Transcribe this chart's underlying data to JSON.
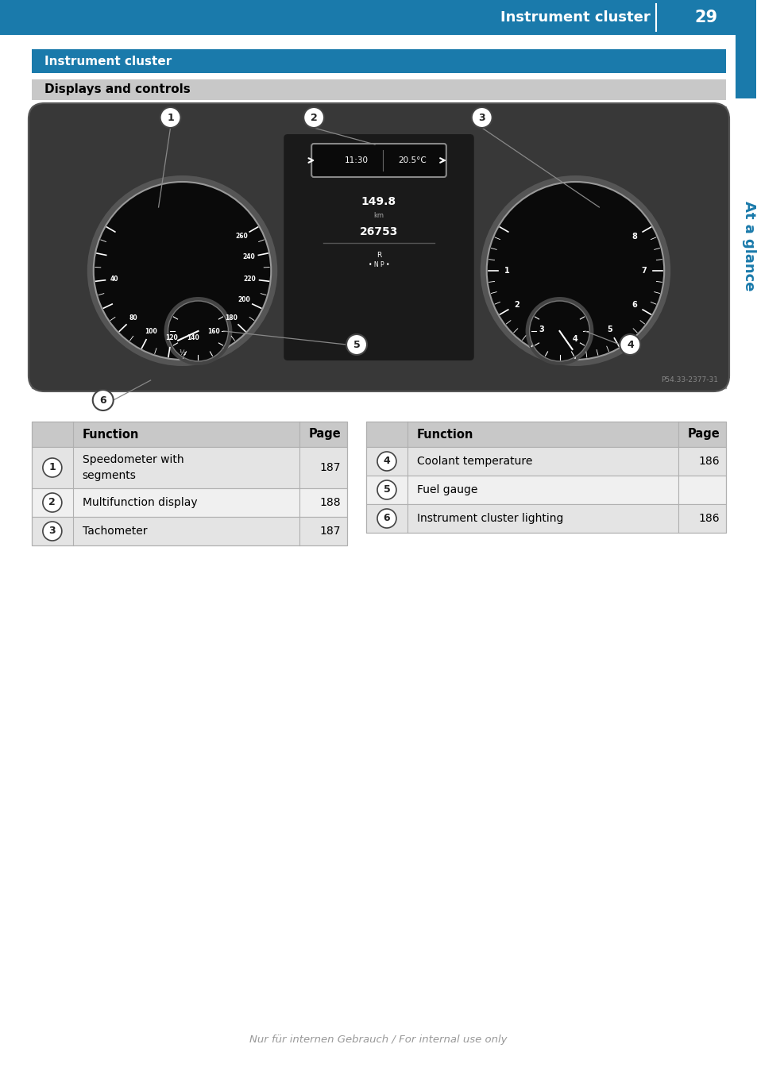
{
  "page_title": "Instrument cluster",
  "page_number": "29",
  "header_bg": "#1a7aab",
  "header_text_color": "#ffffff",
  "section1_title": "Instrument cluster",
  "section2_title": "Displays and controls",
  "section1_bg": "#1a7aab",
  "section2_bg": "#c8c8c8",
  "sidebar_text": "At a glance",
  "sidebar_text_color": "#1a7aab",
  "sidebar_accent_bg": "#1a7aab",
  "table_header_bg": "#c8c8c8",
  "table_row_alt_bg": "#e4e4e4",
  "table_row_bg": "#f0f0f0",
  "table_border": "#b0b0b0",
  "left_table": {
    "rows": [
      {
        "num": "1",
        "function": "Speedometer with\nsegments",
        "page": "187"
      },
      {
        "num": "2",
        "function": "Multifunction display",
        "page": "188"
      },
      {
        "num": "3",
        "function": "Tachometer",
        "page": "187"
      }
    ]
  },
  "right_table": {
    "rows": [
      {
        "num": "4",
        "function": "Coolant temperature",
        "page": "186"
      },
      {
        "num": "5",
        "function": "Fuel gauge",
        "page": ""
      },
      {
        "num": "6",
        "function": "Instrument cluster lighting",
        "page": "186"
      }
    ]
  },
  "footer_text": "Nur für internen Gebrauch / For internal use only",
  "footer_color": "#999999",
  "body_bg": "#ffffff",
  "img_bg": "#c0c0c0",
  "cluster_outer": "#3a3a3a",
  "cluster_inner": "#1e1e1e",
  "dial_bg": "#0d0d0d",
  "dial_edge": "#777777"
}
